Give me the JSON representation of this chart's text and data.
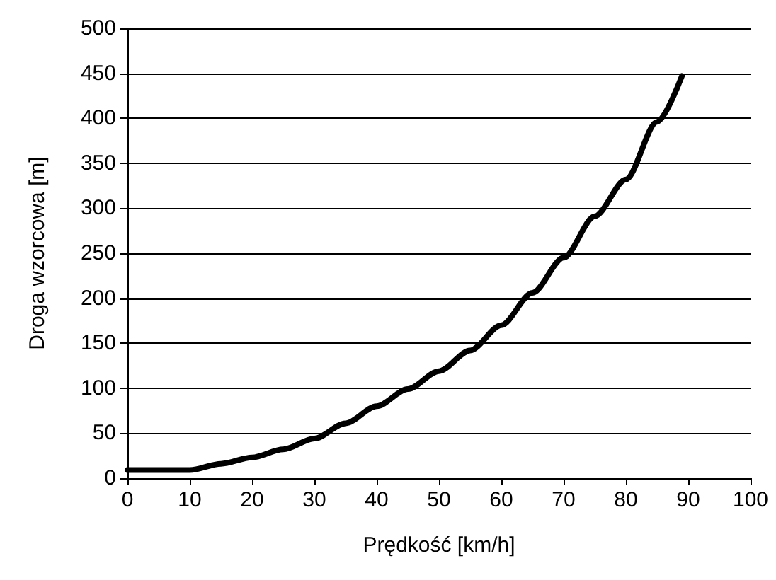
{
  "chart_data": {
    "type": "line",
    "xlabel": "Prędkość [km/h]",
    "ylabel": "Droga wzorcowa [m]",
    "series": [
      {
        "color": "#000000",
        "x": [
          0,
          5,
          10,
          15,
          20,
          25,
          30,
          35,
          40,
          45,
          50,
          55,
          60,
          65,
          70,
          75,
          80,
          85,
          89
        ],
        "values": [
          9,
          9,
          9,
          16,
          23,
          32,
          44,
          61,
          80,
          99,
          119,
          142,
          170,
          206,
          245,
          291,
          332,
          396,
          447
        ]
      }
    ],
    "xlim": [
      0,
      100
    ],
    "xticks": [
      0,
      10,
      20,
      30,
      40,
      50,
      60,
      70,
      80,
      90,
      100
    ],
    "ylim": [
      0,
      500
    ],
    "yticks": [
      0,
      50,
      100,
      150,
      200,
      250,
      300,
      350,
      400,
      450,
      500
    ],
    "grid": "y",
    "marker": "none",
    "line_style": "solid"
  }
}
